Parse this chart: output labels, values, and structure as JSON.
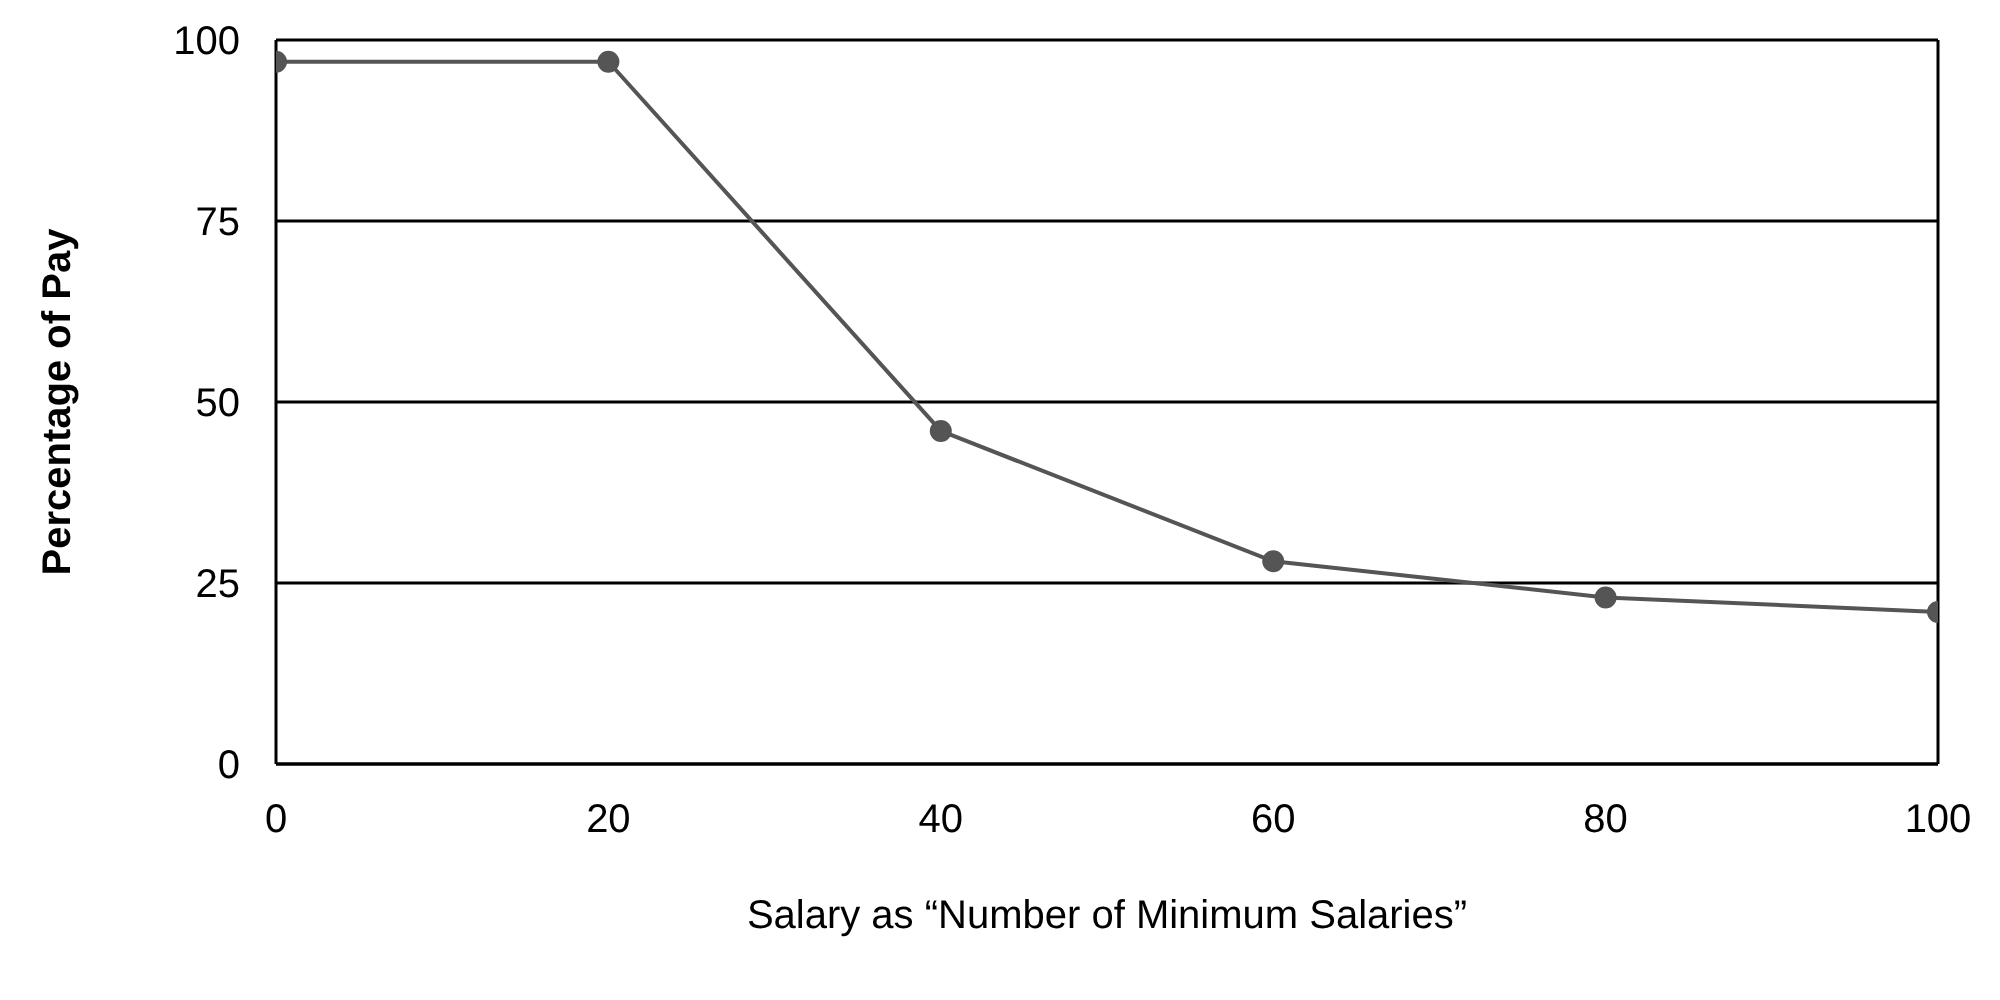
{
  "chart_data": {
    "type": "line",
    "xlabel": "Salary as “Number of Minimum Salaries”",
    "ylabel": "Percentage of Pay",
    "x": [
      0,
      20,
      40,
      60,
      80,
      100
    ],
    "series": [
      {
        "color": "#555555",
        "values": [
          97,
          97,
          46,
          28,
          23,
          21
        ]
      }
    ],
    "xlim": [
      0,
      100
    ],
    "xticks": [
      0,
      20,
      40,
      60,
      80,
      100
    ],
    "ylim": [
      0,
      100
    ],
    "yticks": [
      0,
      25,
      50,
      75,
      100
    ],
    "grid": "y",
    "marker": "circle",
    "line_style": "solid"
  }
}
